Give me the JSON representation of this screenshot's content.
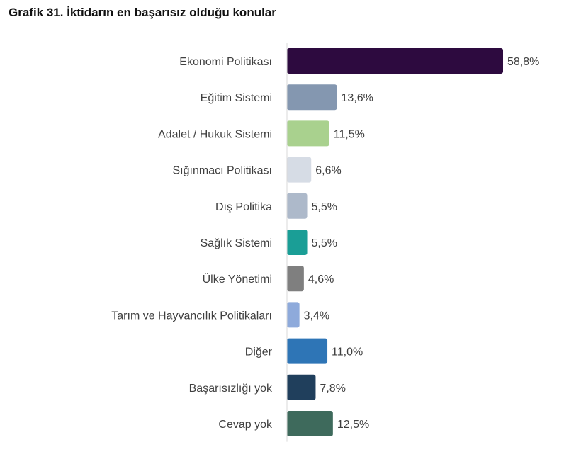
{
  "title": "Grafik 31. İktidarın en başarısız olduğu konular",
  "chart_data": {
    "type": "bar",
    "orientation": "horizontal",
    "title": "Grafik 31. İktidarın en başarısız olduğu konular",
    "categories": [
      "Ekonomi Politikası",
      "Eğitim Sistemi",
      "Adalet / Hukuk Sistemi",
      "Sığınmacı Politikası",
      "Dış Politika",
      "Sağlık Sistemi",
      "Ülke Yönetimi",
      "Tarım ve Hayvancılık Politikaları",
      "Diğer",
      "Başarısızlığı yok",
      "Cevap yok"
    ],
    "values": [
      58.8,
      13.6,
      11.5,
      6.6,
      5.5,
      5.5,
      4.6,
      3.4,
      11.0,
      7.8,
      12.5
    ],
    "value_labels": [
      "58,8%",
      "13,6%",
      "11,5%",
      "6,6%",
      "5,5%",
      "5,5%",
      "4,6%",
      "3,4%",
      "11,0%",
      "7,8%",
      "12,5%"
    ],
    "colors": [
      "#2d0a3f",
      "#8497b0",
      "#a9d18e",
      "#d6dce5",
      "#adb9ca",
      "#1a9e96",
      "#7f7f7f",
      "#8eaadb",
      "#2e75b6",
      "#203f5c",
      "#3e6a5c"
    ],
    "xlim": [
      0,
      60
    ],
    "grid": false,
    "legend": "none",
    "xlabel": "",
    "ylabel": ""
  }
}
